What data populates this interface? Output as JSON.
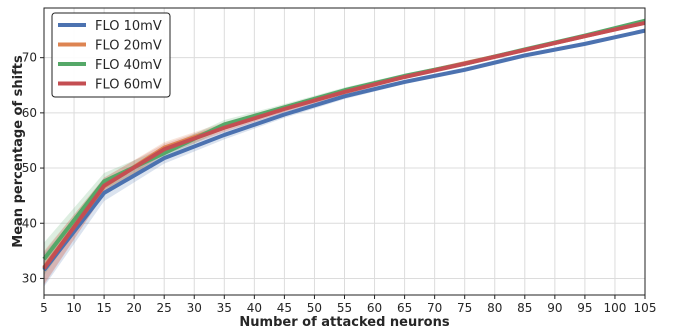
{
  "chart_data": {
    "type": "line",
    "title": "",
    "xlabel": "Number of attacked neurons",
    "ylabel": "Mean percentage of shifts",
    "xlim": [
      5,
      105
    ],
    "ylim": [
      27,
      79
    ],
    "xticks": [
      5,
      10,
      15,
      20,
      25,
      30,
      35,
      40,
      45,
      50,
      55,
      60,
      65,
      70,
      75,
      80,
      85,
      90,
      95,
      100,
      105
    ],
    "yticks": [
      30,
      40,
      50,
      60,
      70
    ],
    "grid": true,
    "legend_position": "top-left",
    "x": [
      5,
      15,
      25,
      35,
      45,
      55,
      65,
      75,
      85,
      95,
      105
    ],
    "series": [
      {
        "name": "FLO 10mV",
        "color": "#4C72B0",
        "values": [
          31.5,
          45.5,
          51.8,
          56.0,
          59.7,
          63.0,
          65.6,
          67.8,
          70.4,
          72.5,
          74.9
        ],
        "band": [
          3.0,
          1.5,
          1.0,
          0.8,
          0.6,
          0.5,
          0.4,
          0.4,
          0.4,
          0.3,
          0.3
        ]
      },
      {
        "name": "FLO 20mV",
        "color": "#DD8452",
        "values": [
          32.0,
          46.7,
          53.7,
          57.5,
          60.8,
          63.8,
          66.6,
          69.0,
          71.4,
          73.9,
          76.4
        ],
        "band": [
          3.0,
          1.5,
          1.0,
          0.8,
          0.6,
          0.5,
          0.4,
          0.4,
          0.4,
          0.3,
          0.3
        ]
      },
      {
        "name": "FLO 40mV",
        "color": "#55A868",
        "values": [
          33.5,
          47.6,
          52.7,
          57.9,
          61.0,
          64.1,
          66.7,
          68.9,
          71.5,
          74.0,
          76.7
        ],
        "band": [
          3.0,
          1.5,
          1.0,
          0.8,
          0.6,
          0.5,
          0.4,
          0.4,
          0.4,
          0.3,
          0.3
        ]
      },
      {
        "name": "FLO 60mV",
        "color": "#C44E52",
        "values": [
          31.8,
          46.8,
          53.4,
          57.3,
          60.7,
          63.8,
          66.5,
          68.9,
          71.4,
          73.9,
          76.3
        ],
        "band": [
          3.0,
          1.5,
          1.0,
          0.8,
          0.6,
          0.5,
          0.4,
          0.4,
          0.4,
          0.3,
          0.3
        ]
      }
    ]
  }
}
